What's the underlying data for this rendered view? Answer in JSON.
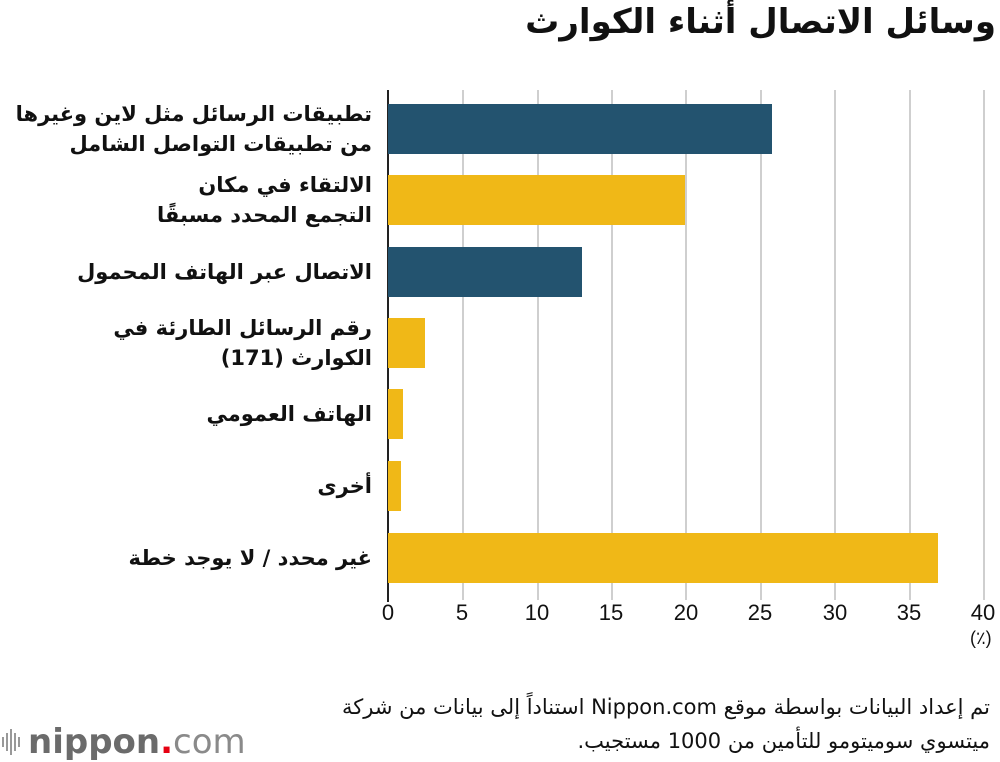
{
  "title": "وسائل الاتصال أثناء الكوارث",
  "colors": {
    "primary": "#23536f",
    "secondary": "#f0b817",
    "grid": "#cfcfcf",
    "axis": "#222222"
  },
  "chart_data": {
    "type": "bar",
    "orientation": "horizontal",
    "title": "وسائل الاتصال أثناء الكوارث",
    "categories": [
      "تطبيقات الرسائل مثل لاين وغيرها من تطبيقات التواصل الشامل",
      "الالتقاء في مكان التجمع المحدد مسبقًا",
      "الاتصال عبر الهاتف المحمول",
      "رقم الرسائل الطارئة في الكوارث (171)",
      "الهاتف العمومي",
      "أخرى",
      "غير محدد / لا يوجد خطة"
    ],
    "values": [
      25.8,
      19.9,
      13.0,
      2.5,
      1.0,
      0.9,
      36.9
    ],
    "bar_colors": [
      "#23536f",
      "#f0b817",
      "#23536f",
      "#f0b817",
      "#f0b817",
      "#f0b817",
      "#f0b817"
    ],
    "xlabel": "(٪)",
    "ylabel": "",
    "xlim": [
      0,
      40
    ],
    "xticks": [
      "0",
      "5",
      "10",
      "15",
      "20",
      "25",
      "30",
      "35",
      "40"
    ],
    "grid": true,
    "legend": null
  },
  "labels": [
    {
      "line1": "تطبيقات الرسائل مثل لاين وغيرها",
      "line2": "من تطبيقات التواصل الشامل"
    },
    {
      "line1": "الالتقاء في مكان",
      "line2": "التجمع المحدد مسبقًا"
    },
    {
      "line1": "الاتصال عبر الهاتف المحمول",
      "line2": ""
    },
    {
      "line1": "رقم الرسائل الطارئة في",
      "line2": "الكوارث (171)"
    },
    {
      "line1": "الهاتف العمومي",
      "line2": ""
    },
    {
      "line1": "أخرى",
      "line2": ""
    },
    {
      "line1": "غير محدد / لا يوجد خطة",
      "line2": ""
    }
  ],
  "axis": {
    "ticks": [
      "0",
      "5",
      "10",
      "15",
      "20",
      "25",
      "30",
      "35",
      "40"
    ],
    "unit": "(٪)"
  },
  "source": {
    "line1": "تم إعداد البيانات بواسطة موقع Nippon.com استناداً إلى بيانات من شركة",
    "line2": "ميتسوي سوميتومو للتأمين من 1000 مستجيب."
  },
  "logo": {
    "brand": "nippon",
    "dot": ".",
    "tld": "com"
  }
}
